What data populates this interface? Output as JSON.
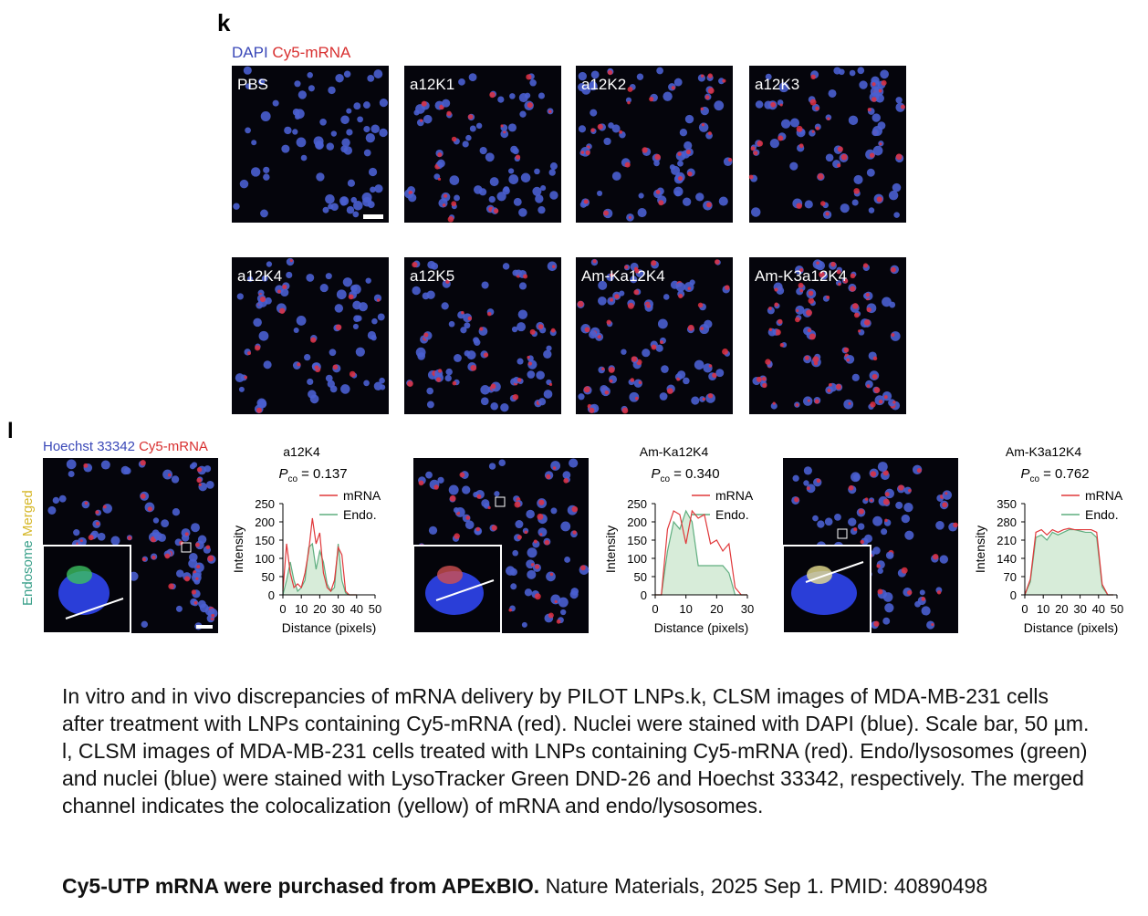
{
  "panel_k": {
    "letter": "k",
    "legend": {
      "blue": "DAPI",
      "red": "Cy5-mRNA"
    },
    "images": [
      "PBS",
      "a12K1",
      "a12K2",
      "a12K3",
      "a12K4",
      "a12K5",
      "Am-Ka12K4",
      "Am-K3a12K4"
    ]
  },
  "panel_l": {
    "letter": "l",
    "legend": {
      "blue": "Hoechst 33342",
      "red": "Cy5-mRNA"
    },
    "side_label": {
      "green": "Endosome",
      "yellow": "Merged"
    }
  },
  "chart_data": [
    {
      "type": "line",
      "title": "a12K4",
      "pco": {
        "symbol": "P",
        "subscript": "co",
        "text": "= 0.137"
      },
      "xlabel": "Distance (pixels)",
      "ylabel": "Intensity",
      "x": [
        0,
        2,
        4,
        6,
        8,
        10,
        12,
        14,
        16,
        18,
        20,
        22,
        24,
        26,
        28,
        30,
        32,
        34,
        36,
        38,
        40
      ],
      "xlim": [
        0,
        50
      ],
      "xticks": [
        0,
        10,
        20,
        30,
        40,
        50
      ],
      "ylim": [
        0,
        250
      ],
      "yticks": [
        0,
        50,
        100,
        150,
        200,
        250
      ],
      "series": [
        {
          "name": "mRNA",
          "color": "#e0383a",
          "values": [
            10,
            140,
            60,
            20,
            30,
            20,
            60,
            120,
            210,
            140,
            170,
            60,
            20,
            10,
            40,
            130,
            110,
            10,
            0,
            0,
            0
          ]
        },
        {
          "name": "Endo.",
          "color": "#5fae7f",
          "fill": "#d7ecd9",
          "values": [
            0,
            40,
            90,
            40,
            10,
            20,
            40,
            130,
            140,
            70,
            120,
            90,
            30,
            10,
            20,
            140,
            40,
            5,
            0,
            0,
            0
          ]
        }
      ]
    },
    {
      "type": "line",
      "title": "Am-Ka12K4",
      "pco": {
        "symbol": "P",
        "subscript": "co",
        "text": "= 0.340"
      },
      "xlabel": "Distance (pixels)",
      "ylabel": "Intensity",
      "x": [
        0,
        2,
        4,
        6,
        8,
        10,
        12,
        14,
        16,
        18,
        20,
        22,
        24,
        26,
        28,
        30
      ],
      "xlim": [
        0,
        30
      ],
      "xticks": [
        0,
        10,
        20,
        30
      ],
      "ylim": [
        0,
        250
      ],
      "yticks": [
        0,
        50,
        100,
        150,
        200,
        250
      ],
      "series": [
        {
          "name": "mRNA",
          "color": "#e0383a",
          "values": [
            0,
            0,
            180,
            230,
            220,
            140,
            230,
            210,
            220,
            140,
            150,
            120,
            140,
            20,
            0,
            0
          ]
        },
        {
          "name": "Endo.",
          "color": "#5fae7f",
          "fill": "#d7ecd9",
          "values": [
            0,
            0,
            120,
            200,
            180,
            230,
            200,
            80,
            80,
            80,
            80,
            80,
            60,
            0,
            0,
            0
          ]
        }
      ]
    },
    {
      "type": "line",
      "title": "Am-K3a12K4",
      "pco": {
        "symbol": "P",
        "subscript": "co",
        "text": "= 0.762"
      },
      "xlabel": "Distance (pixels)",
      "ylabel": "Intensity",
      "x": [
        0,
        3,
        6,
        9,
        12,
        15,
        18,
        21,
        24,
        27,
        30,
        33,
        36,
        39,
        42,
        45,
        48
      ],
      "xlim": [
        0,
        50
      ],
      "xticks": [
        0,
        10,
        20,
        30,
        40,
        50
      ],
      "ylim": [
        0,
        350
      ],
      "yticks": [
        0,
        70,
        140,
        210,
        280,
        350
      ],
      "series": [
        {
          "name": "mRNA",
          "color": "#e0383a",
          "values": [
            0,
            60,
            240,
            250,
            230,
            250,
            240,
            250,
            255,
            250,
            250,
            250,
            250,
            240,
            40,
            0,
            0
          ]
        },
        {
          "name": "Endo.",
          "color": "#5fae7f",
          "fill": "#d7ecd9",
          "values": [
            0,
            50,
            220,
            230,
            210,
            240,
            230,
            240,
            250,
            250,
            245,
            240,
            240,
            220,
            30,
            0,
            0
          ]
        }
      ]
    }
  ],
  "caption": "In vitro and in vivo discrepancies of mRNA delivery by PILOT LNPs.k, CLSM images of MDA-MB-231 cells after treatment with LNPs containing Cy5-mRNA (red). Nuclei were stained with DAPI (blue). Scale bar, 50 µm. l, CLSM images of MDA-MB-231 cells treated with LNPs containing Cy5-mRNA (red). Endo/lysosomes (green) and nuclei (blue) were stained with LysoTracker Green DND-26 and Hoechst 33342, respectively. The merged channel indicates the colocalization (yellow) of mRNA and endo/lysosomes.",
  "footer": {
    "bold": "Cy5-UTP mRNA were purchased from APExBIO.",
    "text": "Nature Materials, 2025 Sep 1. PMID: 40890498"
  }
}
